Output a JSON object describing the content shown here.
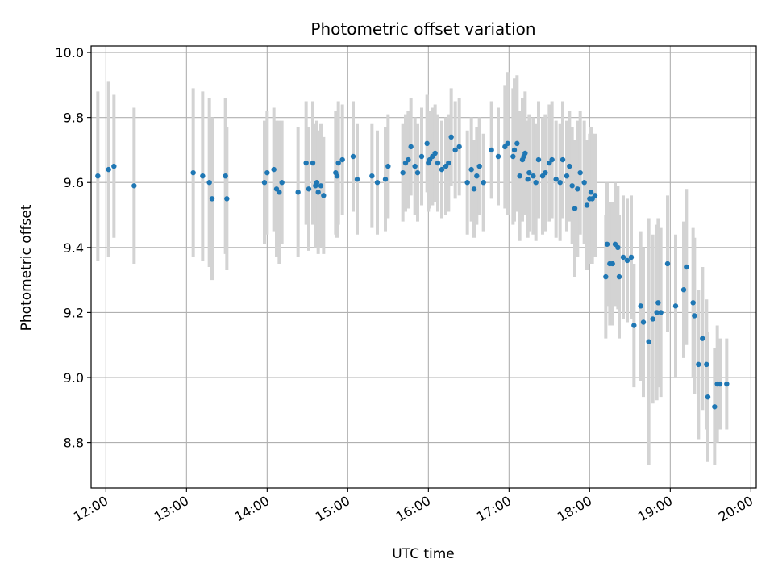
{
  "chart_data": {
    "type": "scatter",
    "title": "Photometric offset variation",
    "xlabel": "UTC time",
    "ylabel": "Photometric offset",
    "x_ticks": [
      "12:00",
      "13:00",
      "14:00",
      "15:00",
      "16:00",
      "17:00",
      "18:00",
      "19:00",
      "20:00"
    ],
    "y_ticks": [
      "8.8",
      "9.0",
      "9.2",
      "9.4",
      "9.6",
      "9.8",
      "10.0"
    ],
    "xlim": [
      "11:49",
      "20:04"
    ],
    "ylim": [
      8.66,
      10.02
    ],
    "grid": true,
    "error_bars": "vertical, light gray",
    "colors": {
      "marker": "#1f77b4",
      "errorbar": "#d3d3d3",
      "grid": "#b0b0b0"
    },
    "points": [
      {
        "x": "11:54",
        "y": 9.62,
        "err": 0.26
      },
      {
        "x": "12:02",
        "y": 9.64,
        "err": 0.27
      },
      {
        "x": "12:06",
        "y": 9.65,
        "err": 0.22
      },
      {
        "x": "12:21",
        "y": 9.59,
        "err": 0.24
      },
      {
        "x": "13:05",
        "y": 9.63,
        "err": 0.26
      },
      {
        "x": "13:12",
        "y": 9.62,
        "err": 0.26
      },
      {
        "x": "13:17",
        "y": 9.6,
        "err": 0.26
      },
      {
        "x": "13:19",
        "y": 9.55,
        "err": 0.25
      },
      {
        "x": "13:29",
        "y": 9.62,
        "err": 0.24
      },
      {
        "x": "13:30",
        "y": 9.55,
        "err": 0.22
      },
      {
        "x": "13:58",
        "y": 9.6,
        "err": 0.19
      },
      {
        "x": "14:00",
        "y": 9.63,
        "err": 0.19
      },
      {
        "x": "14:05",
        "y": 9.64,
        "err": 0.19
      },
      {
        "x": "14:07",
        "y": 9.58,
        "err": 0.21
      },
      {
        "x": "14:09",
        "y": 9.57,
        "err": 0.22
      },
      {
        "x": "14:11",
        "y": 9.6,
        "err": 0.19
      },
      {
        "x": "14:23",
        "y": 9.57,
        "err": 0.2
      },
      {
        "x": "14:29",
        "y": 9.66,
        "err": 0.19
      },
      {
        "x": "14:31",
        "y": 9.58,
        "err": 0.19
      },
      {
        "x": "14:34",
        "y": 9.66,
        "err": 0.19
      },
      {
        "x": "14:36",
        "y": 9.59,
        "err": 0.19
      },
      {
        "x": "14:37",
        "y": 9.6,
        "err": 0.19
      },
      {
        "x": "14:38",
        "y": 9.57,
        "err": 0.19
      },
      {
        "x": "14:40",
        "y": 9.59,
        "err": 0.19
      },
      {
        "x": "14:42",
        "y": 9.56,
        "err": 0.18
      },
      {
        "x": "14:51",
        "y": 9.63,
        "err": 0.19
      },
      {
        "x": "14:52",
        "y": 9.62,
        "err": 0.19
      },
      {
        "x": "14:53",
        "y": 9.66,
        "err": 0.19
      },
      {
        "x": "14:56",
        "y": 9.67,
        "err": 0.17
      },
      {
        "x": "15:04",
        "y": 9.68,
        "err": 0.17
      },
      {
        "x": "15:07",
        "y": 9.61,
        "err": 0.17
      },
      {
        "x": "15:18",
        "y": 9.62,
        "err": 0.16
      },
      {
        "x": "15:22",
        "y": 9.6,
        "err": 0.16
      },
      {
        "x": "15:28",
        "y": 9.61,
        "err": 0.16
      },
      {
        "x": "15:30",
        "y": 9.65,
        "err": 0.16
      },
      {
        "x": "15:41",
        "y": 9.63,
        "err": 0.15
      },
      {
        "x": "15:43",
        "y": 9.66,
        "err": 0.15
      },
      {
        "x": "15:45",
        "y": 9.67,
        "err": 0.15
      },
      {
        "x": "15:47",
        "y": 9.71,
        "err": 0.15
      },
      {
        "x": "15:50",
        "y": 9.65,
        "err": 0.15
      },
      {
        "x": "15:52",
        "y": 9.63,
        "err": 0.15
      },
      {
        "x": "15:55",
        "y": 9.68,
        "err": 0.15
      },
      {
        "x": "15:59",
        "y": 9.72,
        "err": 0.15
      },
      {
        "x": "16:00",
        "y": 9.66,
        "err": 0.15
      },
      {
        "x": "16:01",
        "y": 9.67,
        "err": 0.15
      },
      {
        "x": "16:03",
        "y": 9.68,
        "err": 0.15
      },
      {
        "x": "16:05",
        "y": 9.69,
        "err": 0.15
      },
      {
        "x": "16:07",
        "y": 9.66,
        "err": 0.15
      },
      {
        "x": "16:10",
        "y": 9.64,
        "err": 0.15
      },
      {
        "x": "16:13",
        "y": 9.65,
        "err": 0.15
      },
      {
        "x": "16:15",
        "y": 9.66,
        "err": 0.15
      },
      {
        "x": "16:17",
        "y": 9.74,
        "err": 0.15
      },
      {
        "x": "16:20",
        "y": 9.7,
        "err": 0.15
      },
      {
        "x": "16:23",
        "y": 9.71,
        "err": 0.15
      },
      {
        "x": "16:29",
        "y": 9.6,
        "err": 0.16
      },
      {
        "x": "16:32",
        "y": 9.64,
        "err": 0.16
      },
      {
        "x": "16:34",
        "y": 9.58,
        "err": 0.15
      },
      {
        "x": "16:36",
        "y": 9.62,
        "err": 0.15
      },
      {
        "x": "16:38",
        "y": 9.65,
        "err": 0.15
      },
      {
        "x": "16:41",
        "y": 9.6,
        "err": 0.15
      },
      {
        "x": "16:47",
        "y": 9.7,
        "err": 0.15
      },
      {
        "x": "16:52",
        "y": 9.68,
        "err": 0.15
      },
      {
        "x": "16:57",
        "y": 9.71,
        "err": 0.19
      },
      {
        "x": "16:59",
        "y": 9.72,
        "err": 0.22
      },
      {
        "x": "17:03",
        "y": 9.68,
        "err": 0.21
      },
      {
        "x": "17:04",
        "y": 9.7,
        "err": 0.22
      },
      {
        "x": "17:06",
        "y": 9.72,
        "err": 0.21
      },
      {
        "x": "17:08",
        "y": 9.62,
        "err": 0.2
      },
      {
        "x": "17:10",
        "y": 9.67,
        "err": 0.19
      },
      {
        "x": "17:11",
        "y": 9.68,
        "err": 0.18
      },
      {
        "x": "17:12",
        "y": 9.69,
        "err": 0.19
      },
      {
        "x": "17:14",
        "y": 9.61,
        "err": 0.18
      },
      {
        "x": "17:15",
        "y": 9.63,
        "err": 0.18
      },
      {
        "x": "17:18",
        "y": 9.62,
        "err": 0.18
      },
      {
        "x": "17:20",
        "y": 9.6,
        "err": 0.18
      },
      {
        "x": "17:22",
        "y": 9.67,
        "err": 0.18
      },
      {
        "x": "17:25",
        "y": 9.62,
        "err": 0.18
      },
      {
        "x": "17:27",
        "y": 9.63,
        "err": 0.18
      },
      {
        "x": "17:30",
        "y": 9.66,
        "err": 0.18
      },
      {
        "x": "17:32",
        "y": 9.67,
        "err": 0.18
      },
      {
        "x": "17:35",
        "y": 9.61,
        "err": 0.18
      },
      {
        "x": "17:38",
        "y": 9.6,
        "err": 0.18
      },
      {
        "x": "17:40",
        "y": 9.67,
        "err": 0.18
      },
      {
        "x": "17:43",
        "y": 9.62,
        "err": 0.17
      },
      {
        "x": "17:45",
        "y": 9.65,
        "err": 0.17
      },
      {
        "x": "17:47",
        "y": 9.59,
        "err": 0.18
      },
      {
        "x": "17:49",
        "y": 9.52,
        "err": 0.21
      },
      {
        "x": "17:51",
        "y": 9.58,
        "err": 0.21
      },
      {
        "x": "17:53",
        "y": 9.63,
        "err": 0.19
      },
      {
        "x": "17:56",
        "y": 9.6,
        "err": 0.19
      },
      {
        "x": "17:58",
        "y": 9.53,
        "err": 0.2
      },
      {
        "x": "18:00",
        "y": 9.55,
        "err": 0.2
      },
      {
        "x": "18:01",
        "y": 9.57,
        "err": 0.2
      },
      {
        "x": "18:02",
        "y": 9.55,
        "err": 0.2
      },
      {
        "x": "18:04",
        "y": 9.56,
        "err": 0.19
      },
      {
        "x": "18:12",
        "y": 9.31,
        "err": 0.19
      },
      {
        "x": "18:13",
        "y": 9.41,
        "err": 0.19
      },
      {
        "x": "18:15",
        "y": 9.35,
        "err": 0.19
      },
      {
        "x": "18:17",
        "y": 9.35,
        "err": 0.19
      },
      {
        "x": "18:19",
        "y": 9.41,
        "err": 0.19
      },
      {
        "x": "18:21",
        "y": 9.4,
        "err": 0.19
      },
      {
        "x": "18:22",
        "y": 9.31,
        "err": 0.19
      },
      {
        "x": "18:25",
        "y": 9.37,
        "err": 0.19
      },
      {
        "x": "18:28",
        "y": 9.36,
        "err": 0.19
      },
      {
        "x": "18:31",
        "y": 9.37,
        "err": 0.19
      },
      {
        "x": "18:33",
        "y": 9.16,
        "err": 0.19
      },
      {
        "x": "18:38",
        "y": 9.22,
        "err": 0.23
      },
      {
        "x": "18:40",
        "y": 9.17,
        "err": 0.23
      },
      {
        "x": "18:44",
        "y": 9.11,
        "err": 0.38
      },
      {
        "x": "18:47",
        "y": 9.18,
        "err": 0.26
      },
      {
        "x": "18:50",
        "y": 9.2,
        "err": 0.27
      },
      {
        "x": "18:51",
        "y": 9.23,
        "err": 0.26
      },
      {
        "x": "18:53",
        "y": 9.2,
        "err": 0.26
      },
      {
        "x": "18:58",
        "y": 9.35,
        "err": 0.21
      },
      {
        "x": "19:04",
        "y": 9.22,
        "err": 0.22
      },
      {
        "x": "19:10",
        "y": 9.27,
        "err": 0.21
      },
      {
        "x": "19:12",
        "y": 9.34,
        "err": 0.24
      },
      {
        "x": "19:17",
        "y": 9.23,
        "err": 0.23
      },
      {
        "x": "19:18",
        "y": 9.19,
        "err": 0.24
      },
      {
        "x": "19:21",
        "y": 9.04,
        "err": 0.23
      },
      {
        "x": "19:24",
        "y": 9.12,
        "err": 0.22
      },
      {
        "x": "19:27",
        "y": 9.04,
        "err": 0.2
      },
      {
        "x": "19:28",
        "y": 8.94,
        "err": 0.2
      },
      {
        "x": "19:33",
        "y": 8.91,
        "err": 0.18
      },
      {
        "x": "19:35",
        "y": 8.98,
        "err": 0.18
      },
      {
        "x": "19:37",
        "y": 8.98,
        "err": 0.14
      },
      {
        "x": "19:42",
        "y": 8.98,
        "err": 0.14
      }
    ]
  }
}
